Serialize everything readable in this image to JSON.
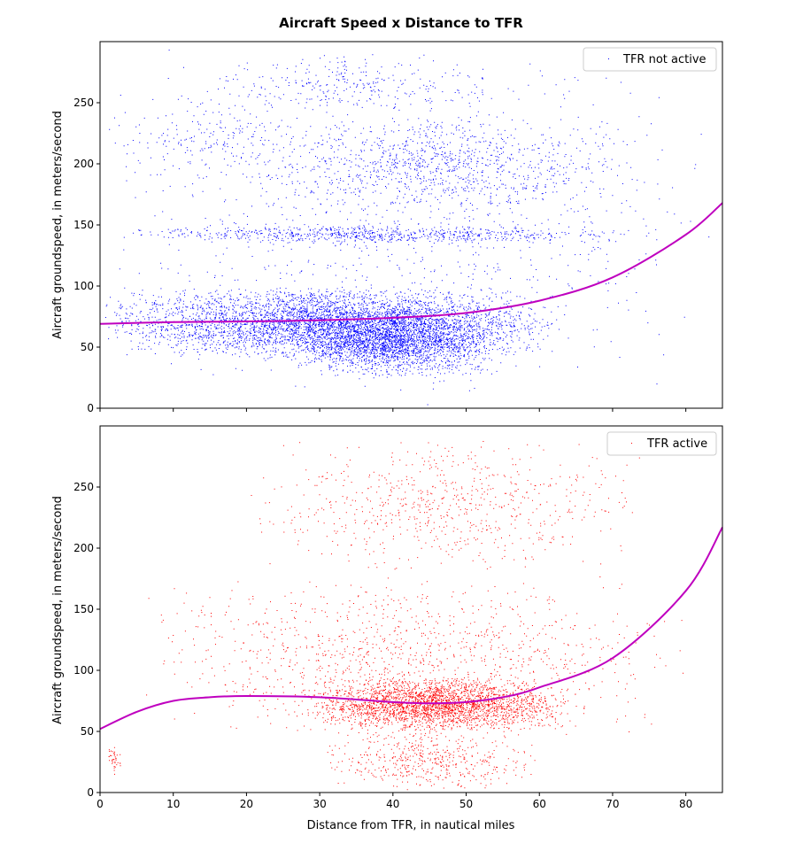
{
  "figure": {
    "title": "Aircraft Speed x Distance to TFR"
  },
  "chart_data": [
    {
      "type": "scatter",
      "title": "",
      "xlabel": "",
      "ylabel": "Aircraft groundspeed, in meters/second",
      "xlim": [
        0,
        85
      ],
      "ylim": [
        0,
        300
      ],
      "xticks": [
        0,
        10,
        20,
        30,
        40,
        50,
        60,
        70,
        80
      ],
      "xtick_labels_shown": false,
      "yticks": [
        0,
        50,
        100,
        150,
        200,
        250
      ],
      "grid": false,
      "legend_position": "top-right",
      "series": [
        {
          "name": "TFR not active",
          "kind": "scatter",
          "color": "#0000ff",
          "clusters": [
            {
              "x": [
                0,
                85
              ],
              "y": [
                0,
                300
              ],
              "n": 1000
            },
            {
              "x": [
                0,
                63
              ],
              "y": [
                40,
                100
              ],
              "n": 4200
            },
            {
              "x": [
                25,
                55
              ],
              "y": [
                25,
                85
              ],
              "n": 2200
            },
            {
              "x": [
                2,
                75
              ],
              "y": [
                135,
                150
              ],
              "n": 700
            },
            {
              "x": [
                20,
                72
              ],
              "y": [
                160,
                240
              ],
              "n": 900
            },
            {
              "x": [
                15,
                55
              ],
              "y": [
                240,
                290
              ],
              "n": 260
            },
            {
              "x": [
                0,
                30
              ],
              "y": [
                180,
                260
              ],
              "n": 200
            }
          ]
        },
        {
          "name": "",
          "kind": "fit",
          "color": "#bf00bf",
          "x": [
            0,
            10,
            20,
            30,
            40,
            50,
            60,
            70,
            80,
            85
          ],
          "y": [
            69,
            70.5,
            71,
            72,
            74,
            78,
            88,
            107,
            142,
            168
          ]
        }
      ]
    },
    {
      "type": "scatter",
      "title": "",
      "xlabel": "Distance from TFR, in nautical miles",
      "ylabel": "Aircraft groundspeed, in meters/second",
      "xlim": [
        0,
        85
      ],
      "ylim": [
        0,
        300
      ],
      "xticks": [
        0,
        10,
        20,
        30,
        40,
        50,
        60,
        70,
        80
      ],
      "yticks": [
        0,
        50,
        100,
        150,
        200,
        250
      ],
      "grid": false,
      "legend_position": "top-right",
      "series": [
        {
          "name": "TFR active",
          "kind": "scatter",
          "color": "#ff0000",
          "clusters": [
            {
              "x": [
                28,
                64
              ],
              "y": [
                50,
                95
              ],
              "n": 2600
            },
            {
              "x": [
                5,
                80
              ],
              "y": [
                40,
                180
              ],
              "n": 1200
            },
            {
              "x": [
                20,
                75
              ],
              "y": [
                180,
                290
              ],
              "n": 700
            },
            {
              "x": [
                30,
                60
              ],
              "y": [
                0,
                55
              ],
              "n": 500
            },
            {
              "x": [
                1,
                3
              ],
              "y": [
                15,
                40
              ],
              "n": 40
            }
          ]
        },
        {
          "name": "",
          "kind": "fit",
          "color": "#bf00bf",
          "x": [
            0,
            5,
            10,
            15,
            20,
            30,
            40,
            45,
            50,
            55,
            60,
            70,
            80,
            85
          ],
          "y": [
            52,
            66,
            75,
            78,
            79,
            78,
            74,
            73,
            74,
            78,
            86,
            110,
            165,
            217
          ]
        }
      ]
    }
  ]
}
